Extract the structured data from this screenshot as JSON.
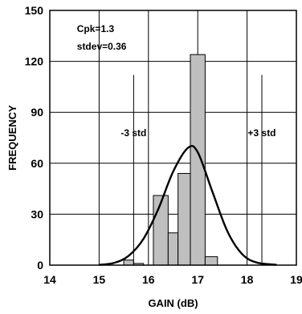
{
  "chart_data": {
    "type": "bar",
    "xlabel": "GAIN (dB)",
    "ylabel": "FREQUENCY",
    "xlim": [
      14,
      19
    ],
    "ylim": [
      0,
      150
    ],
    "x_ticks": [
      14,
      15,
      16,
      17,
      18,
      19
    ],
    "y_ticks": [
      0,
      30,
      60,
      90,
      120,
      150
    ],
    "x_tick_labels": [
      "14",
      "15",
      "16",
      "17",
      "18",
      "19"
    ],
    "y_tick_labels": [
      "0",
      "30",
      "60",
      "90",
      "120",
      "150"
    ],
    "grid": true,
    "bar_color": "#bfbfbf",
    "bins": [
      {
        "x0": 15.5,
        "x1": 15.7,
        "value": 3
      },
      {
        "x0": 15.7,
        "x1": 15.9,
        "value": 1
      },
      {
        "x0": 15.9,
        "x1": 16.1,
        "value": 0
      },
      {
        "x0": 16.1,
        "x1": 16.4,
        "value": 41
      },
      {
        "x0": 16.4,
        "x1": 16.6,
        "value": 19
      },
      {
        "x0": 16.6,
        "x1": 16.85,
        "value": 54
      },
      {
        "x0": 16.85,
        "x1": 17.15,
        "value": 124
      },
      {
        "x0": 17.15,
        "x1": 17.4,
        "value": 5
      }
    ],
    "fit_curve": {
      "x": [
        15.0,
        15.3,
        15.6,
        15.9,
        16.2,
        16.5,
        16.8,
        17.0,
        17.3,
        17.6,
        17.9,
        18.2,
        18.6
      ],
      "y": [
        0.2,
        1.3,
        5.5,
        15.5,
        33.0,
        55.0,
        69.0,
        66.5,
        43.0,
        20.0,
        6.5,
        1.5,
        0.2
      ]
    },
    "lines": [
      {
        "label": "-3 std",
        "x": 15.7
      },
      {
        "label": "+3 std",
        "x": 18.3
      }
    ],
    "annotations": [
      "Cpk=1.3",
      "stdev=0.36"
    ]
  }
}
